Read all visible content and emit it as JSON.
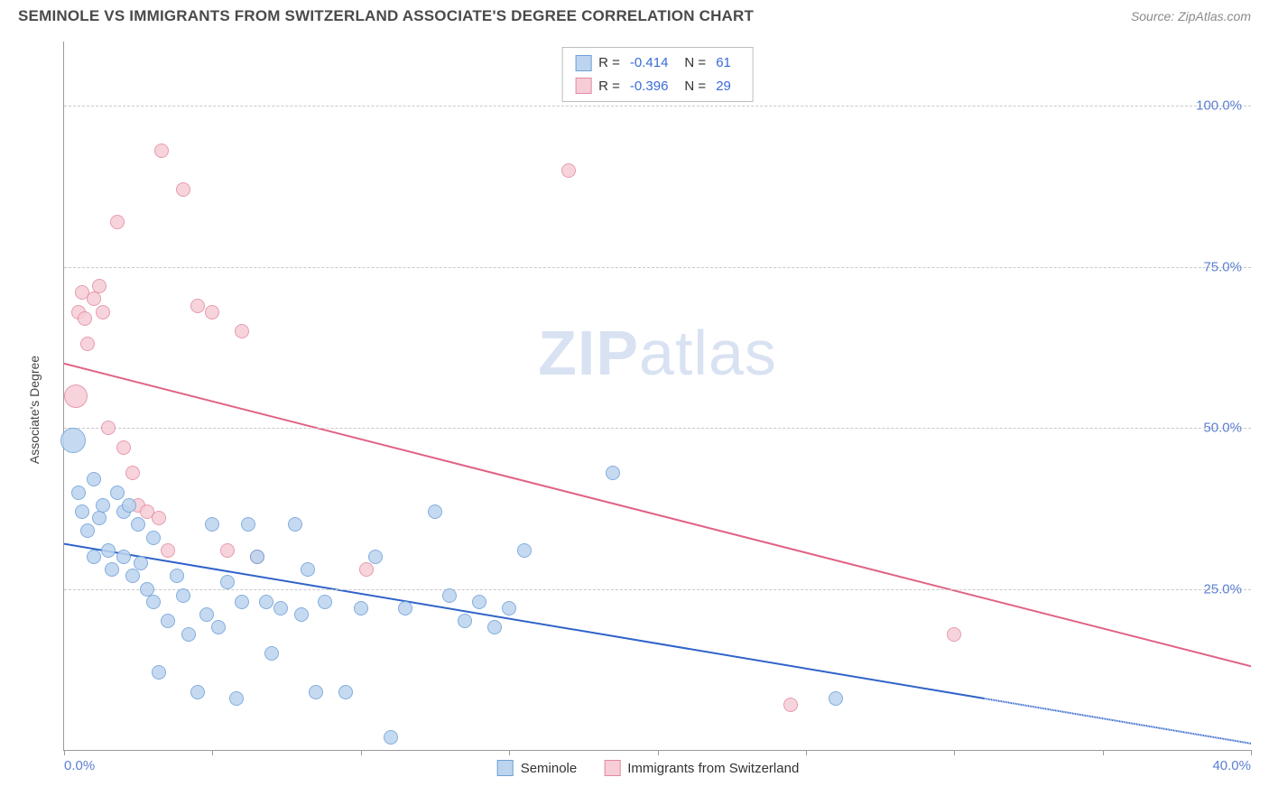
{
  "header": {
    "title": "SEMINOLE VS IMMIGRANTS FROM SWITZERLAND ASSOCIATE'S DEGREE CORRELATION CHART",
    "source": "Source: ZipAtlas.com"
  },
  "watermark": {
    "part1": "ZIP",
    "part2": "atlas"
  },
  "chart": {
    "type": "scatter",
    "y_axis_title": "Associate's Degree",
    "xlim": [
      0,
      40
    ],
    "ylim": [
      0,
      110
    ],
    "x_ticks": [
      0,
      5,
      10,
      15,
      20,
      25,
      30,
      35,
      40
    ],
    "x_tick_labels": {
      "0": "0.0%",
      "40": "40.0%"
    },
    "y_gridlines": [
      25,
      50,
      75,
      100
    ],
    "y_tick_labels": {
      "25": "25.0%",
      "50": "50.0%",
      "75": "75.0%",
      "100": "100.0%"
    },
    "background_color": "#ffffff",
    "grid_color": "#c9c9c9",
    "axis_label_color": "#5b7fd1",
    "series": [
      {
        "name": "Seminole",
        "fill": "#bcd4ef",
        "stroke": "#6f9fd8",
        "line_color": "#2f63c9",
        "r_value": "-0.414",
        "n_value": "61",
        "trend": {
          "x1": 0,
          "y1": 32,
          "x2": 31,
          "y2": 8,
          "dash_x1": 31,
          "dash_y1": 8,
          "dash_x2": 40,
          "dash_y2": 1
        },
        "points": [
          {
            "x": 0.3,
            "y": 48,
            "r": 14
          },
          {
            "x": 0.5,
            "y": 40,
            "r": 8
          },
          {
            "x": 0.6,
            "y": 37,
            "r": 8
          },
          {
            "x": 0.8,
            "y": 34,
            "r": 8
          },
          {
            "x": 1.0,
            "y": 42,
            "r": 8
          },
          {
            "x": 1.0,
            "y": 30,
            "r": 8
          },
          {
            "x": 1.2,
            "y": 36,
            "r": 8
          },
          {
            "x": 1.3,
            "y": 38,
            "r": 8
          },
          {
            "x": 1.5,
            "y": 31,
            "r": 8
          },
          {
            "x": 1.6,
            "y": 28,
            "r": 8
          },
          {
            "x": 1.8,
            "y": 40,
            "r": 8
          },
          {
            "x": 2.0,
            "y": 37,
            "r": 8
          },
          {
            "x": 2.0,
            "y": 30,
            "r": 8
          },
          {
            "x": 2.2,
            "y": 38,
            "r": 8
          },
          {
            "x": 2.3,
            "y": 27,
            "r": 8
          },
          {
            "x": 2.5,
            "y": 35,
            "r": 8
          },
          {
            "x": 2.6,
            "y": 29,
            "r": 8
          },
          {
            "x": 2.8,
            "y": 25,
            "r": 8
          },
          {
            "x": 3.0,
            "y": 33,
            "r": 8
          },
          {
            "x": 3.0,
            "y": 23,
            "r": 8
          },
          {
            "x": 3.2,
            "y": 12,
            "r": 8
          },
          {
            "x": 3.5,
            "y": 20,
            "r": 8
          },
          {
            "x": 3.8,
            "y": 27,
            "r": 8
          },
          {
            "x": 4.0,
            "y": 24,
            "r": 8
          },
          {
            "x": 4.2,
            "y": 18,
            "r": 8
          },
          {
            "x": 4.5,
            "y": 9,
            "r": 8
          },
          {
            "x": 4.8,
            "y": 21,
            "r": 8
          },
          {
            "x": 5.0,
            "y": 35,
            "r": 8
          },
          {
            "x": 5.2,
            "y": 19,
            "r": 8
          },
          {
            "x": 5.5,
            "y": 26,
            "r": 8
          },
          {
            "x": 5.8,
            "y": 8,
            "r": 8
          },
          {
            "x": 6.0,
            "y": 23,
            "r": 8
          },
          {
            "x": 6.2,
            "y": 35,
            "r": 8
          },
          {
            "x": 6.5,
            "y": 30,
            "r": 8
          },
          {
            "x": 6.8,
            "y": 23,
            "r": 8
          },
          {
            "x": 7.0,
            "y": 15,
            "r": 8
          },
          {
            "x": 7.3,
            "y": 22,
            "r": 8
          },
          {
            "x": 7.8,
            "y": 35,
            "r": 8
          },
          {
            "x": 8.0,
            "y": 21,
            "r": 8
          },
          {
            "x": 8.2,
            "y": 28,
            "r": 8
          },
          {
            "x": 8.5,
            "y": 9,
            "r": 8
          },
          {
            "x": 8.8,
            "y": 23,
            "r": 8
          },
          {
            "x": 9.5,
            "y": 9,
            "r": 8
          },
          {
            "x": 10.0,
            "y": 22,
            "r": 8
          },
          {
            "x": 10.5,
            "y": 30,
            "r": 8
          },
          {
            "x": 11.0,
            "y": 2,
            "r": 8
          },
          {
            "x": 11.5,
            "y": 22,
            "r": 8
          },
          {
            "x": 12.5,
            "y": 37,
            "r": 8
          },
          {
            "x": 13.0,
            "y": 24,
            "r": 8
          },
          {
            "x": 13.5,
            "y": 20,
            "r": 8
          },
          {
            "x": 14.0,
            "y": 23,
            "r": 8
          },
          {
            "x": 14.5,
            "y": 19,
            "r": 8
          },
          {
            "x": 15.0,
            "y": 22,
            "r": 8
          },
          {
            "x": 15.5,
            "y": 31,
            "r": 8
          },
          {
            "x": 18.5,
            "y": 43,
            "r": 8
          },
          {
            "x": 26.0,
            "y": 8,
            "r": 8
          }
        ]
      },
      {
        "name": "Immigrants from Switzerland",
        "fill": "#f6cdd7",
        "stroke": "#e38aa2",
        "line_color": "#e06284",
        "r_value": "-0.396",
        "n_value": "29",
        "trend": {
          "x1": 0,
          "y1": 60,
          "x2": 40,
          "y2": 13
        },
        "points": [
          {
            "x": 0.4,
            "y": 55,
            "r": 13
          },
          {
            "x": 0.5,
            "y": 68,
            "r": 8
          },
          {
            "x": 0.6,
            "y": 71,
            "r": 8
          },
          {
            "x": 0.7,
            "y": 67,
            "r": 8
          },
          {
            "x": 0.8,
            "y": 63,
            "r": 8
          },
          {
            "x": 1.0,
            "y": 70,
            "r": 8
          },
          {
            "x": 1.2,
            "y": 72,
            "r": 8
          },
          {
            "x": 1.3,
            "y": 68,
            "r": 8
          },
          {
            "x": 1.5,
            "y": 50,
            "r": 8
          },
          {
            "x": 1.8,
            "y": 82,
            "r": 8
          },
          {
            "x": 2.0,
            "y": 47,
            "r": 8
          },
          {
            "x": 2.3,
            "y": 43,
            "r": 8
          },
          {
            "x": 2.5,
            "y": 38,
            "r": 8
          },
          {
            "x": 2.8,
            "y": 37,
            "r": 8
          },
          {
            "x": 3.2,
            "y": 36,
            "r": 8
          },
          {
            "x": 3.3,
            "y": 93,
            "r": 8
          },
          {
            "x": 3.5,
            "y": 31,
            "r": 8
          },
          {
            "x": 4.0,
            "y": 87,
            "r": 8
          },
          {
            "x": 4.5,
            "y": 69,
            "r": 8
          },
          {
            "x": 5.0,
            "y": 68,
            "r": 8
          },
          {
            "x": 5.5,
            "y": 31,
            "r": 8
          },
          {
            "x": 6.0,
            "y": 65,
            "r": 8
          },
          {
            "x": 6.5,
            "y": 30,
            "r": 8
          },
          {
            "x": 10.2,
            "y": 28,
            "r": 8
          },
          {
            "x": 17.0,
            "y": 90,
            "r": 8
          },
          {
            "x": 24.5,
            "y": 7,
            "r": 8
          },
          {
            "x": 30.0,
            "y": 18,
            "r": 8
          }
        ]
      }
    ]
  },
  "legend_top": {
    "r_label": "R =",
    "n_label": "N ="
  },
  "legend_bottom": {
    "items": [
      "Seminole",
      "Immigrants from Switzerland"
    ]
  }
}
